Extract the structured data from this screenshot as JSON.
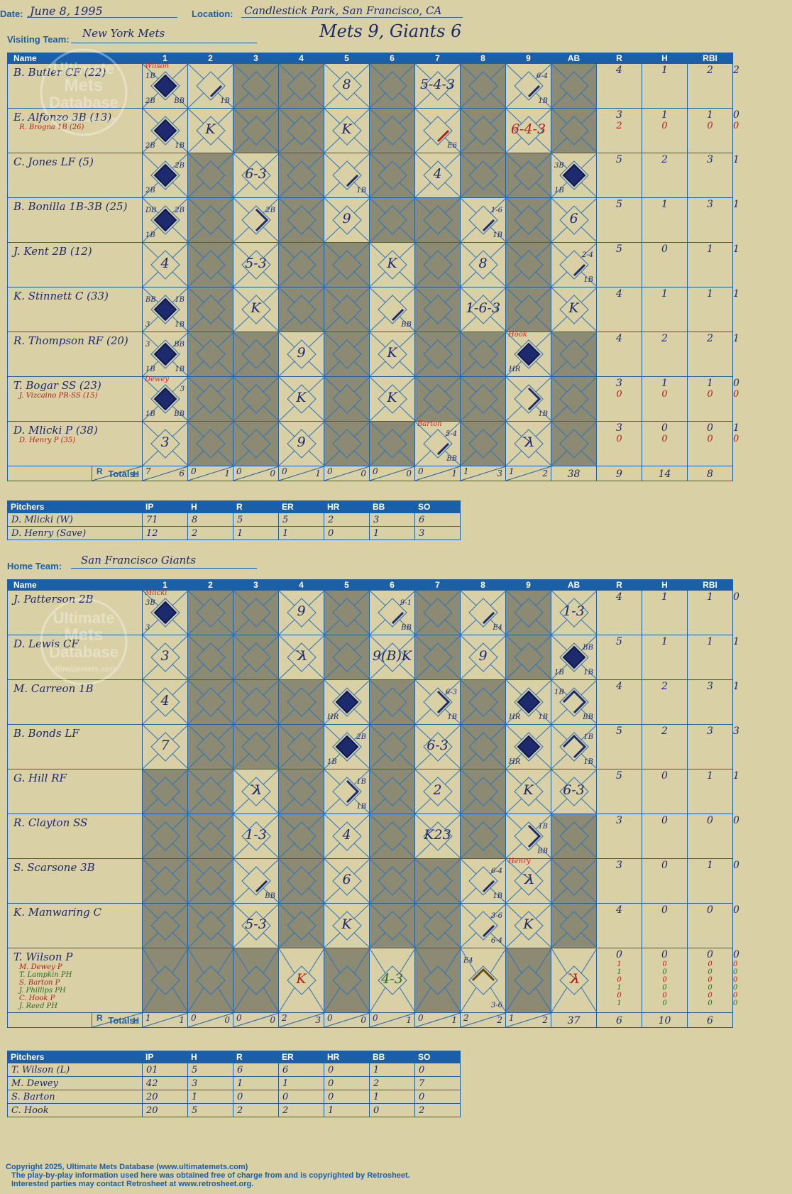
{
  "header": {
    "date_label": "Date:",
    "date": "June 8, 1995",
    "location_label": "Location:",
    "location": "Candlestick Park, San Francisco, CA",
    "visiting_label": "Visiting Team:",
    "visiting_team": "New York Mets",
    "home_label": "Home Team:",
    "home_team": "San Francisco Giants",
    "result": "Mets 9, Giants 6"
  },
  "columns": [
    "Name",
    "1",
    "2",
    "3",
    "4",
    "5",
    "6",
    "7",
    "8",
    "9",
    "AB",
    "R",
    "H",
    "RBI"
  ],
  "totals_label": "Totals:",
  "rh_label_r": "R",
  "rh_label_h": "H",
  "watermark": {
    "line1": "Ultimate",
    "line2": "Mets",
    "line3": "Database",
    "line4": "ultimatemets.com"
  },
  "visitors": {
    "rows": [
      {
        "name": "B. Butler CF (22)",
        "subs": [],
        "stats": [
          [
            "4"
          ],
          [
            "1"
          ],
          [
            "2"
          ],
          [
            "2"
          ]
        ],
        "cells": [
          {
            "fill": "full",
            "tl": "1B",
            "bl": "2B",
            "br": "BB",
            "top": "Wilson"
          },
          {
            "fill": "seg1",
            "br": "1B"
          },
          {
            "g": 1
          },
          {
            "g": 1
          },
          {
            "mark": "8"
          },
          {
            "g": 1
          },
          {
            "mark": "5-4-3"
          },
          {
            "g": 1
          },
          {
            "fill": "seg1",
            "tr": "6-4",
            "br": "1B"
          },
          {
            "g": 1
          }
        ]
      },
      {
        "name": "E. Alfonzo 3B (13)",
        "subs": [
          "R. Brogna 1B (26)"
        ],
        "stats": [
          [
            "3",
            "2"
          ],
          [
            "1",
            "0"
          ],
          [
            "1",
            "0"
          ],
          [
            "0",
            "0"
          ]
        ],
        "cells": [
          {
            "fill": "full",
            "bl": "2B",
            "br": "1B"
          },
          {
            "mark": "K"
          },
          {
            "g": 1
          },
          {
            "g": 1
          },
          {
            "mark": "K"
          },
          {
            "g": 1
          },
          {
            "fill": "segred",
            "br": "E6"
          },
          {
            "g": 1
          },
          {
            "mark": "6-4-3",
            "red": 1
          },
          {
            "g": 1
          }
        ]
      },
      {
        "name": "C. Jones LF (5)",
        "subs": [],
        "stats": [
          [
            "5"
          ],
          [
            "2"
          ],
          [
            "3"
          ],
          [
            "1"
          ]
        ],
        "cells": [
          {
            "fill": "full",
            "tr": "2B",
            "bl": "2B"
          },
          {
            "g": 1
          },
          {
            "mark": "6-3"
          },
          {
            "g": 1
          },
          {
            "fill": "seg1",
            "br": "1B"
          },
          {
            "g": 1
          },
          {
            "mark": "4"
          },
          {
            "g": 1
          },
          {
            "g": 1
          },
          {
            "fill": "full",
            "tl": "3B",
            "bl": "1B"
          }
        ]
      },
      {
        "name": "B. Bonilla 1B-3B (25)",
        "subs": [],
        "stats": [
          [
            "5"
          ],
          [
            "1"
          ],
          [
            "3"
          ],
          [
            "1"
          ]
        ],
        "cells": [
          {
            "fill": "full",
            "tl": "DB",
            "tr": "2B",
            "bl": "1B"
          },
          {
            "g": 1
          },
          {
            "fill": "seg2",
            "tr": "2B"
          },
          {
            "g": 1
          },
          {
            "mark": "9"
          },
          {
            "g": 1
          },
          {
            "g": 1
          },
          {
            "fill": "seg1",
            "tr": "1-6",
            "br": "1B"
          },
          {
            "g": 1
          },
          {
            "mark": "6"
          }
        ]
      },
      {
        "name": "J. Kent 2B (12)",
        "subs": [],
        "stats": [
          [
            "5"
          ],
          [
            "0"
          ],
          [
            "1"
          ],
          [
            "1"
          ]
        ],
        "cells": [
          {
            "mark": "4"
          },
          {
            "g": 1
          },
          {
            "mark": "5-3"
          },
          {
            "g": 1
          },
          {
            "g": 1
          },
          {
            "mark": "K"
          },
          {
            "g": 1
          },
          {
            "mark": "8"
          },
          {
            "g": 1
          },
          {
            "fill": "seg1",
            "tr": "2-4",
            "br": "1B"
          }
        ]
      },
      {
        "name": "K. Stinnett C (33)",
        "subs": [],
        "stats": [
          [
            "4"
          ],
          [
            "1"
          ],
          [
            "1"
          ],
          [
            "1"
          ]
        ],
        "cells": [
          {
            "fill": "full",
            "tl": "BB",
            "tr": "1B",
            "bl": "3",
            "br": "1B"
          },
          {
            "g": 1
          },
          {
            "mark": "K"
          },
          {
            "g": 1
          },
          {
            "g": 1
          },
          {
            "fill": "seg1",
            "br": "BB"
          },
          {
            "g": 1
          },
          {
            "mark": "1-6-3"
          },
          {
            "g": 1
          },
          {
            "mark": "K"
          }
        ]
      },
      {
        "name": "R. Thompson RF (20)",
        "subs": [],
        "stats": [
          [
            "4"
          ],
          [
            "2"
          ],
          [
            "2"
          ],
          [
            "1"
          ]
        ],
        "cells": [
          {
            "fill": "full",
            "tl": "3",
            "tr": "BB",
            "bl": "1B",
            "br": "1B"
          },
          {
            "g": 1
          },
          {
            "g": 1
          },
          {
            "mark": "9"
          },
          {
            "g": 1
          },
          {
            "mark": "K"
          },
          {
            "g": 1
          },
          {
            "g": 1
          },
          {
            "fill": "full",
            "bl": "HR",
            "top": "Hook"
          },
          {
            "g": 1
          }
        ]
      },
      {
        "name": "T. Bogar SS (23)",
        "subs": [
          "J. Vizcaino PR-SS (15)"
        ],
        "stats": [
          [
            "3",
            "0"
          ],
          [
            "1",
            "0"
          ],
          [
            "1",
            "0"
          ],
          [
            "0",
            "0"
          ]
        ],
        "cells": [
          {
            "fill": "full",
            "tr": "3",
            "bl": "1B",
            "br": "BB",
            "top": "Dewey"
          },
          {
            "g": 1
          },
          {
            "g": 1
          },
          {
            "mark": "K"
          },
          {
            "g": 1
          },
          {
            "mark": "K"
          },
          {
            "g": 1
          },
          {
            "g": 1
          },
          {
            "fill": "seg2",
            "br": "1B"
          },
          {
            "g": 1
          }
        ]
      },
      {
        "name": "D. Mlicki P (38)",
        "subs": [
          "D. Henry P (35)"
        ],
        "stats": [
          [
            "3",
            "0"
          ],
          [
            "0",
            "0"
          ],
          [
            "0",
            "0"
          ],
          [
            "1",
            "0"
          ]
        ],
        "cells": [
          {
            "mark": "3"
          },
          {
            "g": 1
          },
          {
            "g": 1
          },
          {
            "mark": "9"
          },
          {
            "g": 1
          },
          {
            "g": 1
          },
          {
            "fill": "seg1",
            "tr": "5-4",
            "br": "BB",
            "top": "Barton"
          },
          {
            "g": 1
          },
          {
            "mark": "K",
            "rev": 1
          },
          {
            "g": 1
          }
        ]
      }
    ],
    "totals": [
      [
        "7",
        "6"
      ],
      [
        "0",
        "1"
      ],
      [
        "0",
        "0"
      ],
      [
        "0",
        "1"
      ],
      [
        "0",
        "0"
      ],
      [
        "0",
        "0"
      ],
      [
        "0",
        "1"
      ],
      [
        "1",
        "3"
      ],
      [
        "1",
        "2"
      ]
    ],
    "totals_stats": [
      "38",
      "9",
      "14",
      "8"
    ]
  },
  "visitor_pitchers": {
    "columns": [
      "Pitchers",
      "IP",
      "H",
      "R",
      "ER",
      "HR",
      "BB",
      "SO"
    ],
    "rows": [
      [
        "D. Mlicki (W)",
        "71",
        "8",
        "5",
        "5",
        "2",
        "3",
        "6"
      ],
      [
        "D. Henry (Save)",
        "12",
        "2",
        "1",
        "1",
        "0",
        "1",
        "3"
      ]
    ]
  },
  "home": {
    "rows": [
      {
        "name": "J. Patterson 2B",
        "subs": [],
        "stats": [
          [
            "4"
          ],
          [
            "1"
          ],
          [
            "1"
          ],
          [
            "0"
          ]
        ],
        "cells": [
          {
            "fill": "full",
            "tl": "3B",
            "bl": "3",
            "top": "Mlicki"
          },
          {
            "g": 1
          },
          {
            "g": 1
          },
          {
            "mark": "9"
          },
          {
            "g": 1
          },
          {
            "fill": "seg1",
            "tr": "9-1",
            "br": "BB"
          },
          {
            "g": 1
          },
          {
            "fill": "seg1",
            "br": "E4"
          },
          {
            "g": 1
          },
          {
            "mark": "1-3"
          }
        ]
      },
      {
        "name": "D. Lewis CF",
        "subs": [],
        "stats": [
          [
            "5"
          ],
          [
            "1"
          ],
          [
            "1"
          ],
          [
            "1"
          ]
        ],
        "cells": [
          {
            "mark": "3"
          },
          {
            "g": 1
          },
          {
            "g": 1
          },
          {
            "mark": "K",
            "rev": 1
          },
          {
            "g": 1
          },
          {
            "mark": "9(B)K"
          },
          {
            "g": 1
          },
          {
            "mark": "9"
          },
          {
            "g": 1
          },
          {
            "fill": "full",
            "tr": "BB",
            "bl": "1B",
            "br": "1B"
          }
        ]
      },
      {
        "name": "M. Carreon 1B",
        "subs": [],
        "stats": [
          [
            "4"
          ],
          [
            "2"
          ],
          [
            "3"
          ],
          [
            "1"
          ]
        ],
        "cells": [
          {
            "mark": "4"
          },
          {
            "g": 1
          },
          {
            "g": 1
          },
          {
            "g": 1
          },
          {
            "fill": "full",
            "bl": "HR"
          },
          {
            "g": 1
          },
          {
            "fill": "seg2",
            "tr": "6-3",
            "br": "1B"
          },
          {
            "g": 1
          },
          {
            "fill": "full",
            "bl": "HR",
            "br": "1B"
          },
          {
            "fill": "seg3",
            "tl": "1B",
            "br": "BB"
          }
        ]
      },
      {
        "name": "B. Bonds LF",
        "subs": [],
        "stats": [
          [
            "5"
          ],
          [
            "2"
          ],
          [
            "3"
          ],
          [
            "3"
          ]
        ],
        "cells": [
          {
            "mark": "7"
          },
          {
            "g": 1
          },
          {
            "g": 1
          },
          {
            "g": 1
          },
          {
            "fill": "full",
            "tr": "2B",
            "bl": "1B"
          },
          {
            "g": 1
          },
          {
            "mark": "6-3"
          },
          {
            "g": 1
          },
          {
            "fill": "full",
            "bl": "HR"
          },
          {
            "fill": "seg3",
            "tr": "1B",
            "br": "1B"
          }
        ]
      },
      {
        "name": "G. Hill RF",
        "subs": [],
        "stats": [
          [
            "5"
          ],
          [
            "0"
          ],
          [
            "1"
          ],
          [
            "1"
          ]
        ],
        "cells": [
          {
            "g": 1
          },
          {
            "g": 1
          },
          {
            "mark": "K",
            "rev": 1
          },
          {
            "g": 1
          },
          {
            "fill": "seg2",
            "tr": "1B",
            "br": "1B"
          },
          {
            "g": 1
          },
          {
            "mark": "2"
          },
          {
            "g": 1
          },
          {
            "mark": "K"
          },
          {
            "mark": "6-3"
          }
        ]
      },
      {
        "name": "R. Clayton SS",
        "subs": [],
        "stats": [
          [
            "3"
          ],
          [
            "0"
          ],
          [
            "0"
          ],
          [
            "0"
          ]
        ],
        "cells": [
          {
            "g": 1
          },
          {
            "g": 1
          },
          {
            "mark": "1-3"
          },
          {
            "g": 1
          },
          {
            "mark": "4"
          },
          {
            "g": 1
          },
          {
            "mark": "K23"
          },
          {
            "g": 1
          },
          {
            "fill": "seg2",
            "tr": "1B",
            "br": "BB"
          },
          {
            "g": 1
          }
        ]
      },
      {
        "name": "S. Scarsone 3B",
        "subs": [],
        "stats": [
          [
            "3"
          ],
          [
            "0"
          ],
          [
            "1"
          ],
          [
            "0"
          ]
        ],
        "cells": [
          {
            "g": 1
          },
          {
            "g": 1
          },
          {
            "fill": "seg1",
            "br": "BB"
          },
          {
            "g": 1
          },
          {
            "mark": "6"
          },
          {
            "g": 1
          },
          {
            "g": 1
          },
          {
            "fill": "seg1",
            "tr": "6-4",
            "br": "1B"
          },
          {
            "mark": "K",
            "rev": 1,
            "top": "Henry"
          },
          {
            "g": 1
          }
        ]
      },
      {
        "name": "K. Manwaring C",
        "subs": [],
        "stats": [
          [
            "4"
          ],
          [
            "0"
          ],
          [
            "0"
          ],
          [
            "0"
          ]
        ],
        "cells": [
          {
            "g": 1
          },
          {
            "g": 1
          },
          {
            "mark": "5-3"
          },
          {
            "g": 1
          },
          {
            "mark": "K"
          },
          {
            "g": 1
          },
          {
            "g": 1
          },
          {
            "fill": "seg1",
            "tr": "3-6",
            "br": "6-4"
          },
          {
            "mark": "K"
          },
          {
            "g": 1
          }
        ]
      },
      {
        "name": "T. Wilson P",
        "subs": [
          "M. Dewey P",
          "T. Lampkin PH",
          "S. Barton P",
          "J. Phillips PH",
          "C. Hook P",
          "J. Reed PH"
        ],
        "stats": [
          [
            "0",
            "1",
            "1",
            "0",
            "1",
            "0",
            "1"
          ],
          [
            "0",
            "0",
            "0",
            "0",
            "0",
            "0",
            "0"
          ],
          [
            "0",
            "0",
            "0",
            "0",
            "0",
            "0",
            "0"
          ],
          [
            "0",
            "0",
            "0",
            "0",
            "0",
            "0",
            "0"
          ]
        ],
        "cells": [
          {
            "g": 1
          },
          {
            "g": 1
          },
          {
            "g": 1
          },
          {
            "mark": "K",
            "red": 1
          },
          {
            "g": 1
          },
          {
            "mark": "4-3",
            "grn": 1
          },
          {
            "g": 1
          },
          {
            "fill": "segbrown",
            "tl": "E4",
            "br": "3-6"
          },
          {
            "g": 1
          },
          {
            "mark": "K",
            "rev": 1,
            "red": 1
          }
        ]
      }
    ],
    "totals": [
      [
        "1",
        "1"
      ],
      [
        "0",
        "0"
      ],
      [
        "0",
        "0"
      ],
      [
        "2",
        "3"
      ],
      [
        "0",
        "0"
      ],
      [
        "0",
        "1"
      ],
      [
        "0",
        "1"
      ],
      [
        "2",
        "2"
      ],
      [
        "1",
        "2"
      ]
    ],
    "totals_stats": [
      "37",
      "6",
      "10",
      "6"
    ]
  },
  "home_pitchers": {
    "columns": [
      "Pitchers",
      "IP",
      "H",
      "R",
      "ER",
      "HR",
      "BB",
      "SO"
    ],
    "rows": [
      [
        "T. Wilson (L)",
        "01",
        "5",
        "6",
        "6",
        "0",
        "1",
        "0"
      ],
      [
        "M. Dewey",
        "42",
        "3",
        "1",
        "1",
        "0",
        "2",
        "7"
      ],
      [
        "S. Barton",
        "20",
        "1",
        "0",
        "0",
        "0",
        "1",
        "0"
      ],
      [
        "C. Hook",
        "20",
        "5",
        "2",
        "2",
        "1",
        "0",
        "2"
      ]
    ]
  },
  "footer": {
    "line1": "Copyright 2025, Ultimate Mets Database (www.ultimatemets.com)",
    "line2": "The play-by-play information used here was obtained free of charge from and is copyrighted by Retrosheet.",
    "line3": "Interested parties may contact Retrosheet at www.retrosheet.org."
  },
  "colors": {
    "paper": "#d9d0a6",
    "grid": "#1a5fa8",
    "grey": "#8c8a72",
    "ink": "#1d2a6b",
    "red": "#b01e1e"
  }
}
